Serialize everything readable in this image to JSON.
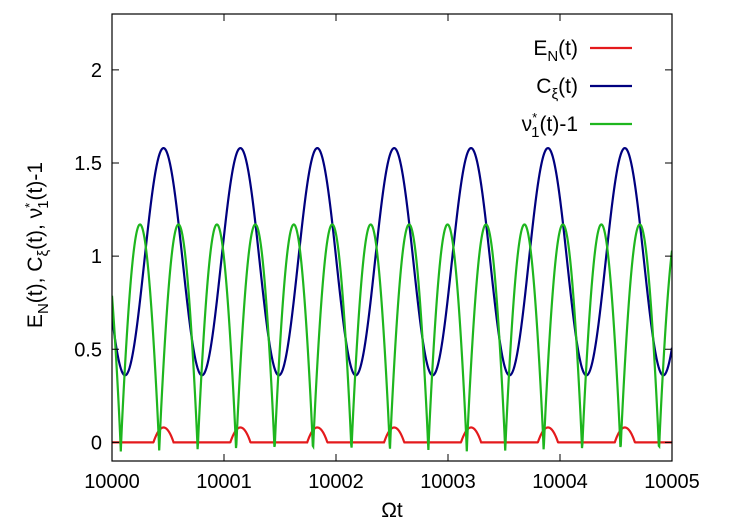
{
  "chart_data": {
    "type": "line",
    "xlabel": "Ωt",
    "ylabel_parts": [
      "E",
      "N",
      "(t), C",
      "ξ",
      "(t), ν",
      "*",
      "1",
      "(t)-1"
    ],
    "xlim": [
      10000,
      10005
    ],
    "ylim": [
      -0.1,
      2.3
    ],
    "x_ticks": [
      10000,
      10001,
      10002,
      10003,
      10004,
      10005
    ],
    "y_ticks": [
      0,
      0.5,
      1,
      1.5,
      2
    ],
    "x_tick_labels": [
      "10000",
      "10001",
      "10002",
      "10003",
      "10004",
      "10005"
    ],
    "y_tick_labels": [
      "0",
      "0.5",
      "1",
      "1.5",
      "2"
    ],
    "grid": false,
    "legend_position": "top-right",
    "series": [
      {
        "name_parts": [
          "E",
          "N",
          "",
          "(t)"
        ],
        "color": "#e41a1c",
        "description": "Mostly zero; small positive humps of height ≈0.08 centered where C_ξ is maximal",
        "period": 0.6865,
        "phase_x": 10000.46,
        "peak": 0.08,
        "halfwidth": 0.09
      },
      {
        "name_parts": [
          "C",
          "ξ",
          "",
          "(t)"
        ],
        "color": "#00007f",
        "min": 0.36,
        "max": 1.58,
        "period": 0.6865,
        "phase_x": 10000.46
      },
      {
        "name_parts": [
          "ν",
          "1",
          "*",
          "(t)-1"
        ],
        "color": "#1eb61e",
        "min": -0.05,
        "max": 1.17,
        "period": 0.6865,
        "phase_x": 10000.46
      }
    ]
  }
}
